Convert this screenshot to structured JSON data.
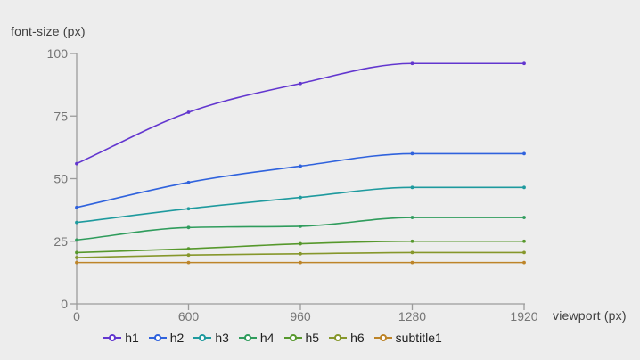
{
  "chart_data": {
    "type": "line",
    "interpolation": "monotone",
    "ylabel": "font-size (px)",
    "xlabel": "viewport (px)",
    "x": [
      0,
      600,
      960,
      1280,
      1920
    ],
    "x_axis_type": "point",
    "y_ticks": [
      0,
      25,
      50,
      75,
      100
    ],
    "ylim": [
      0,
      100
    ],
    "grid": false,
    "legend_position": "bottom",
    "series": [
      {
        "name": "h1",
        "color": "#6236cf",
        "values": [
          56,
          76.5,
          88,
          96,
          96
        ]
      },
      {
        "name": "h2",
        "color": "#2f62dd",
        "values": [
          38.5,
          48.5,
          55,
          60,
          60
        ]
      },
      {
        "name": "h3",
        "color": "#1e9a9e",
        "values": [
          32.5,
          38,
          42.5,
          46.5,
          46.5
        ]
      },
      {
        "name": "h4",
        "color": "#2f9c5c",
        "values": [
          25.5,
          30.5,
          31,
          34.5,
          34.5
        ]
      },
      {
        "name": "h5",
        "color": "#56982c",
        "values": [
          20.5,
          22,
          24,
          25,
          25
        ]
      },
      {
        "name": "h6",
        "color": "#86972b",
        "values": [
          18.5,
          19.5,
          20,
          20.5,
          20.5
        ]
      },
      {
        "name": "subtitle1",
        "color": "#bd8428",
        "values": [
          16.5,
          16.5,
          16.5,
          16.5,
          16.5
        ]
      }
    ]
  },
  "style": {
    "background": "#ededed",
    "axis_color": "#9b9b9b",
    "tick_label_color": "#757575",
    "axis_title_color": "#3f3f3f",
    "legend_label_color": "#1e1e1e"
  }
}
